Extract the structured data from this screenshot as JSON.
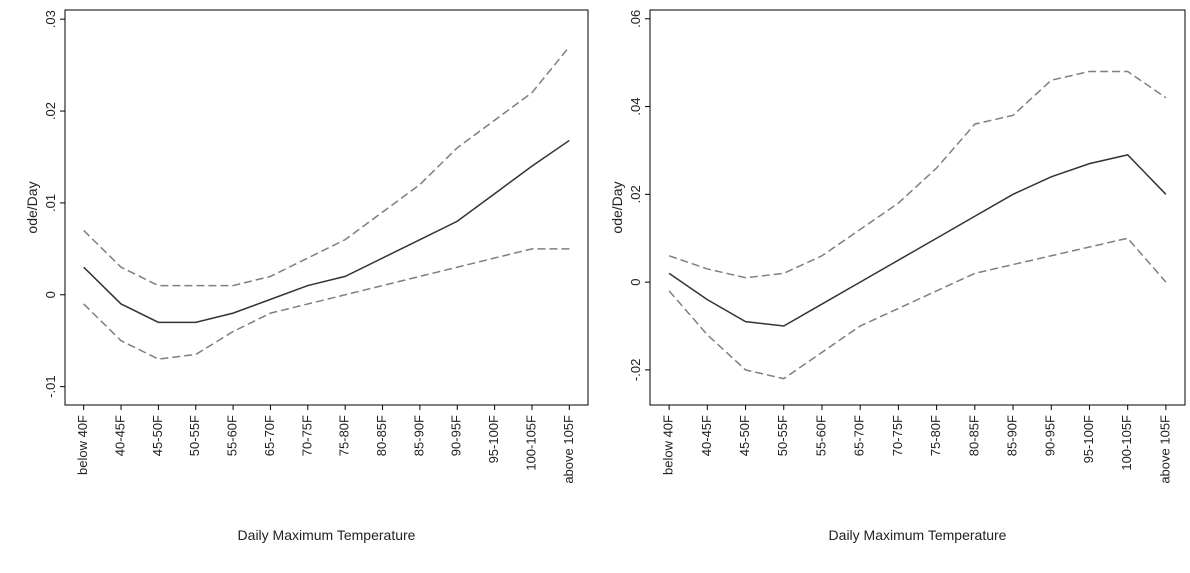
{
  "chart_data": [
    {
      "type": "line",
      "ylabel": "ode/Day",
      "xlabel": "Daily Maximum Temperature",
      "categories": [
        "below 40F",
        "40-45F",
        "45-50F",
        "50-55F",
        "55-60F",
        "65-70F",
        "70-75F",
        "75-80F",
        "80-85F",
        "85-90F",
        "90-95F",
        "95-100F",
        "100-105F",
        "above 105F"
      ],
      "ylim": [
        -0.012,
        0.031
      ],
      "yticks": [
        {
          "value": -0.01,
          "label": "-.01"
        },
        {
          "value": 0,
          "label": "0"
        },
        {
          "value": 0.01,
          "label": ".01"
        },
        {
          "value": 0.02,
          "label": ".02"
        },
        {
          "value": 0.03,
          "label": ".03"
        }
      ],
      "series": [
        {
          "color": "#7f7f7f",
          "dash": true,
          "values": [
            0.007,
            0.003,
            0.001,
            0.001,
            0.001,
            0.002,
            0.004,
            0.006,
            0.009,
            0.012,
            0.016,
            0.019,
            0.022,
            0.027
          ]
        },
        {
          "color": "#333333",
          "dash": false,
          "values": [
            0.003,
            -0.001,
            -0.003,
            -0.003,
            -0.002,
            -0.0005,
            0.001,
            0.002,
            0.004,
            0.006,
            0.008,
            0.011,
            0.014,
            0.0168
          ]
        },
        {
          "color": "#7f7f7f",
          "dash": true,
          "values": [
            -0.001,
            -0.005,
            -0.007,
            -0.0065,
            -0.004,
            -0.002,
            -0.001,
            0,
            0.001,
            0.002,
            0.003,
            0.004,
            0.005,
            0.005
          ]
        }
      ]
    },
    {
      "type": "line",
      "ylabel": "ode/Day",
      "xlabel": "Daily Maximum Temperature",
      "categories": [
        "below 40F",
        "40-45F",
        "45-50F",
        "50-55F",
        "55-60F",
        "65-70F",
        "70-75F",
        "75-80F",
        "80-85F",
        "85-90F",
        "90-95F",
        "95-100F",
        "100-105F",
        "above 105F"
      ],
      "ylim": [
        -0.028,
        0.062
      ],
      "yticks": [
        {
          "value": -0.02,
          "label": "-.02"
        },
        {
          "value": 0,
          "label": "0"
        },
        {
          "value": 0.02,
          "label": ".02"
        },
        {
          "value": 0.04,
          "label": ".04"
        },
        {
          "value": 0.06,
          "label": ".06"
        }
      ],
      "series": [
        {
          "color": "#7f7f7f",
          "dash": true,
          "values": [
            0.006,
            0.003,
            0.001,
            0.002,
            0.006,
            0.012,
            0.018,
            0.026,
            0.036,
            0.038,
            0.046,
            0.048,
            0.048,
            0.042
          ]
        },
        {
          "color": "#333333",
          "dash": false,
          "values": [
            0.002,
            -0.004,
            -0.009,
            -0.01,
            -0.005,
            0,
            0.005,
            0.01,
            0.015,
            0.02,
            0.024,
            0.027,
            0.029,
            0.02
          ]
        },
        {
          "color": "#7f7f7f",
          "dash": true,
          "values": [
            -0.002,
            -0.012,
            -0.02,
            -0.022,
            -0.016,
            -0.01,
            -0.006,
            -0.002,
            0.002,
            0.004,
            0.006,
            0.008,
            0.01,
            0
          ]
        }
      ]
    }
  ]
}
